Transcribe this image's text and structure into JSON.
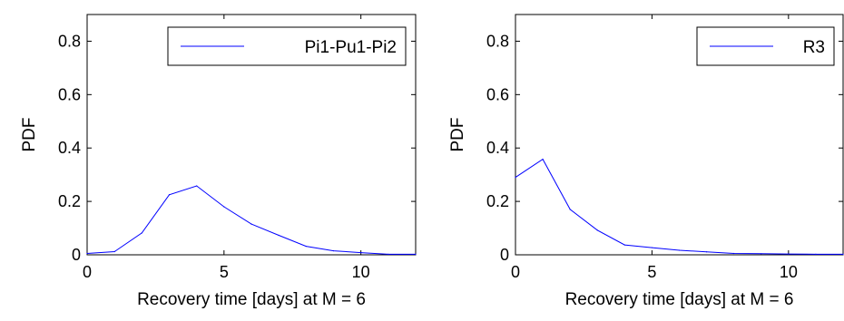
{
  "chart_data": [
    {
      "type": "line",
      "title": "",
      "xlabel": "Recovery time [days] at M = 6",
      "ylabel": "PDF",
      "xlim": [
        0,
        12
      ],
      "ylim": [
        0,
        0.9
      ],
      "xticks": [
        0,
        5,
        10
      ],
      "yticks": [
        0,
        0.2,
        0.4,
        0.6,
        0.8
      ],
      "grid": false,
      "legend_position": "top-right",
      "series": [
        {
          "name": "Pi1-Pu1-Pi2",
          "color": "#0000ff",
          "x": [
            0,
            1,
            2,
            3,
            4,
            5,
            6,
            7,
            8,
            9,
            10,
            11,
            12
          ],
          "y": [
            0.005,
            0.012,
            0.082,
            0.225,
            0.258,
            0.18,
            0.115,
            0.073,
            0.032,
            0.015,
            0.008,
            0.002,
            0.002
          ]
        }
      ]
    },
    {
      "type": "line",
      "title": "",
      "xlabel": "Recovery time [days] at M = 6",
      "ylabel": "PDF",
      "xlim": [
        0,
        12
      ],
      "ylim": [
        0,
        0.9
      ],
      "xticks": [
        0,
        5,
        10
      ],
      "yticks": [
        0,
        0.2,
        0.4,
        0.6,
        0.8
      ],
      "grid": false,
      "legend_position": "top-right",
      "series": [
        {
          "name": "R3",
          "color": "#0000ff",
          "x": [
            0,
            1,
            2,
            3,
            4,
            5,
            6,
            7,
            8,
            9,
            10,
            11,
            12
          ],
          "y": [
            0.29,
            0.358,
            0.17,
            0.092,
            0.037,
            0.027,
            0.017,
            0.011,
            0.005,
            0.004,
            0.003,
            0.002,
            0.002
          ]
        }
      ]
    }
  ]
}
